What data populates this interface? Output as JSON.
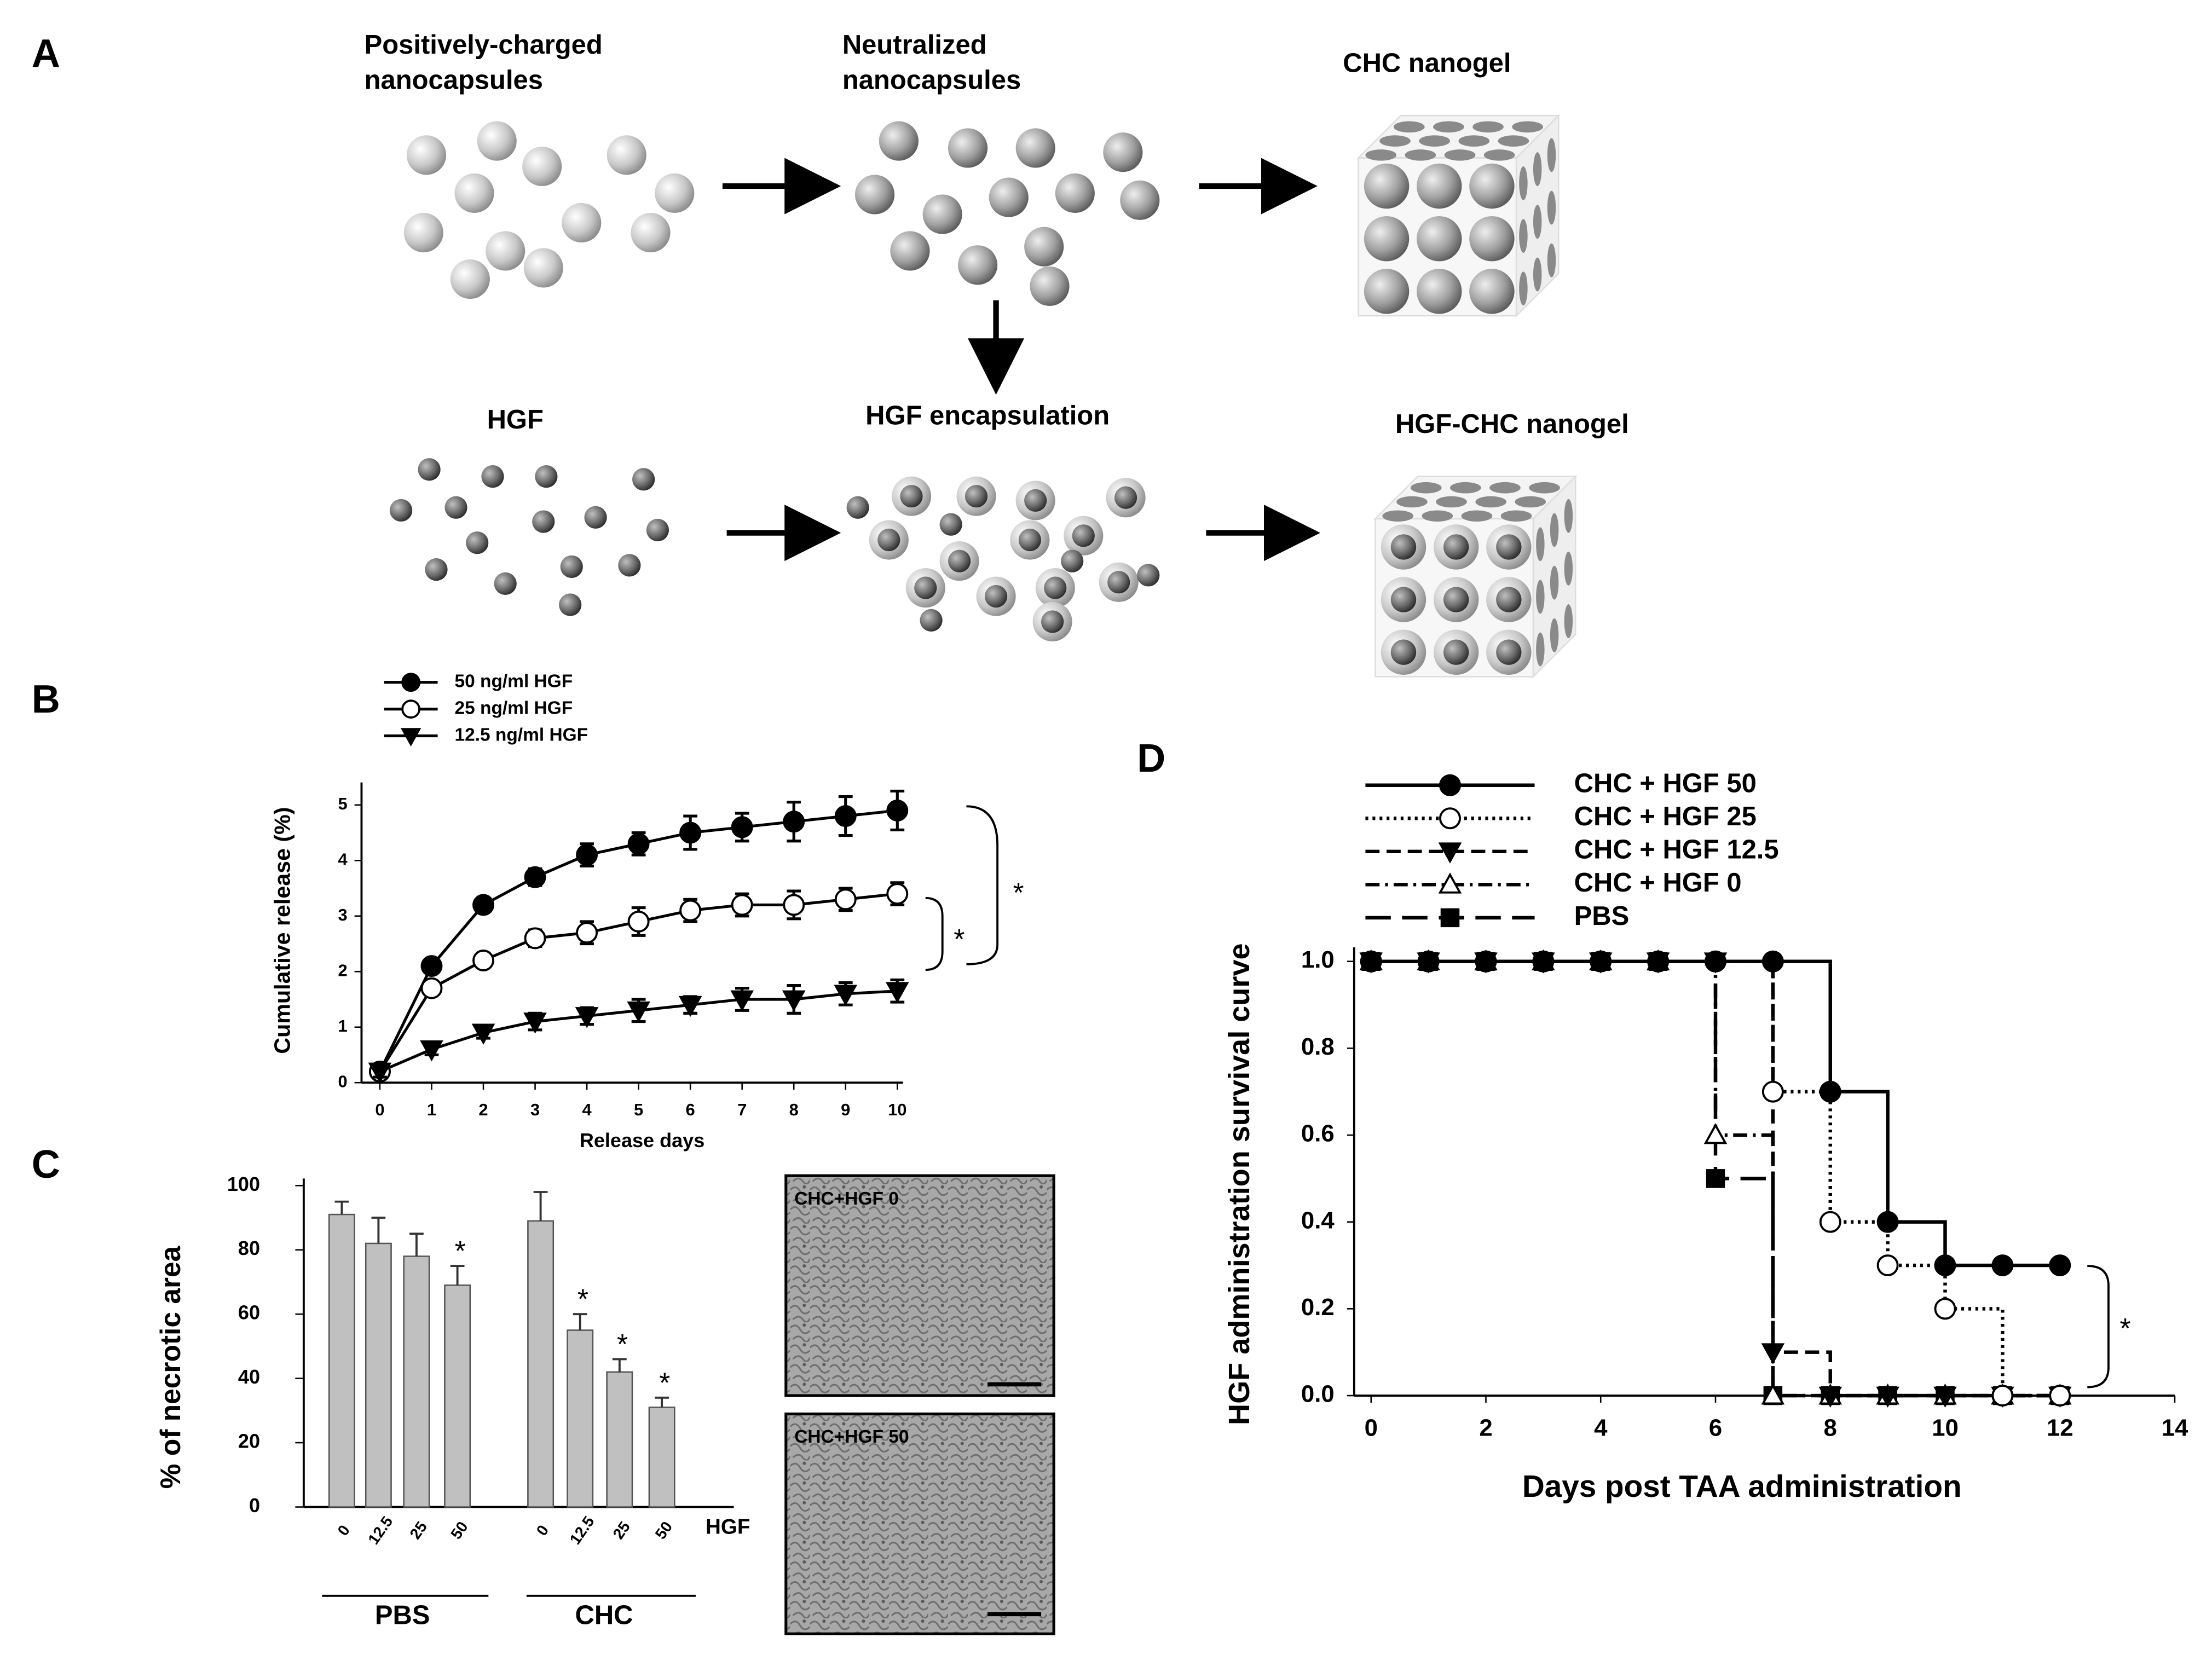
{
  "panel_labels": [
    "A",
    "B",
    "C",
    "D"
  ],
  "diagram": {
    "nodes": [
      {
        "label": [
          "Positively-charged",
          "nanocapsules"
        ]
      },
      {
        "label": [
          "Neutralized",
          "nanocapsules"
        ]
      },
      {
        "label": [
          "CHC nanogel"
        ]
      },
      {
        "label": [
          "HGF"
        ]
      },
      {
        "label": [
          "HGF encapsulation"
        ]
      },
      {
        "label": [
          "HGF-CHC nanogel"
        ]
      }
    ]
  },
  "chart_data": [
    {
      "type": "line",
      "x": [
        0,
        1,
        2,
        3,
        4,
        5,
        6,
        7,
        8,
        9,
        10
      ],
      "xlim": [
        0,
        10
      ],
      "xticks": [
        0,
        1,
        2,
        3,
        4,
        5,
        6,
        7,
        8,
        9,
        10
      ],
      "ylim": [
        0,
        5
      ],
      "yticks": [
        0,
        1,
        2,
        3,
        4,
        5
      ],
      "xlabel": "Release days",
      "ylabel": "Cumulative release (%)",
      "series": [
        {
          "name": "50 ng/ml HGF",
          "color": "#000000",
          "marker": "circle",
          "values": [
            0.2,
            2.1,
            3.2,
            3.7,
            4.1,
            4.3,
            4.5,
            4.6,
            4.7,
            4.8,
            4.9
          ],
          "errors": [
            0.1,
            0.1,
            0.1,
            0.15,
            0.2,
            0.2,
            0.3,
            0.25,
            0.35,
            0.35,
            0.35
          ]
        },
        {
          "name": "25 ng/ml HGF",
          "color": "#000000",
          "marker": "open-circle",
          "values": [
            0.2,
            1.7,
            2.2,
            2.6,
            2.7,
            2.9,
            3.1,
            3.2,
            3.2,
            3.3,
            3.4
          ],
          "errors": [
            0.1,
            0.1,
            0.1,
            0.15,
            0.2,
            0.25,
            0.2,
            0.2,
            0.25,
            0.2,
            0.2
          ]
        },
        {
          "name": "12.5 ng/ml HGF",
          "color": "#000000",
          "marker": "triangle-down",
          "values": [
            0.2,
            0.6,
            0.9,
            1.1,
            1.2,
            1.3,
            1.4,
            1.5,
            1.5,
            1.6,
            1.65
          ],
          "errors": [
            0.1,
            0.1,
            0.1,
            0.15,
            0.15,
            0.2,
            0.15,
            0.2,
            0.25,
            0.2,
            0.2
          ]
        }
      ],
      "annotations": [
        "*",
        "*"
      ]
    },
    {
      "type": "bar",
      "categories": [
        "0",
        "12.5",
        "25",
        "50",
        "0",
        "12.5",
        "25",
        "50"
      ],
      "category_title": "HGF",
      "groups": [
        "PBS",
        "CHC"
      ],
      "values": [
        91,
        82,
        78,
        69,
        89,
        55,
        42,
        31
      ],
      "errors": [
        4,
        8,
        7,
        6,
        9,
        5,
        4,
        3
      ],
      "significance": [
        null,
        null,
        null,
        "*",
        null,
        "*",
        "*",
        "*"
      ],
      "color": "#c0c0c0",
      "ylim": [
        0,
        100
      ],
      "yticks": [
        0,
        20,
        40,
        60,
        80,
        100
      ],
      "ylabel": "% of necrotic area"
    },
    {
      "type": "step",
      "x": [
        0,
        1,
        2,
        3,
        4,
        5,
        6,
        7,
        8,
        9,
        10,
        11,
        12
      ],
      "xlim": [
        0,
        14
      ],
      "xticks": [
        0,
        2,
        4,
        6,
        8,
        10,
        12,
        14
      ],
      "ylim": [
        0,
        1
      ],
      "yticks": [
        {
          "value": 0,
          "label": "0.0"
        },
        {
          "value": 0.2,
          "label": "0.2"
        },
        {
          "value": 0.4,
          "label": "0.4"
        },
        {
          "value": 0.6,
          "label": "0.6"
        },
        {
          "value": 0.8,
          "label": "0.8"
        },
        {
          "value": 1,
          "label": "1.0"
        }
      ],
      "xlabel": "Days post TAA administration",
      "ylabel": "HGF administration survival curve",
      "series": [
        {
          "name": "CHC + HGF 50",
          "color": "#000000",
          "marker": "circle",
          "dash": "solid",
          "values": [
            1,
            1,
            1,
            1,
            1,
            1,
            1,
            1,
            0.7,
            0.4,
            0.3,
            0.3,
            0.3
          ]
        },
        {
          "name": "CHC + HGF 25",
          "color": "#000000",
          "marker": "open-circle",
          "dash": "dotted",
          "values": [
            1,
            1,
            1,
            1,
            1,
            1,
            1,
            0.7,
            0.4,
            0.3,
            0.2,
            0,
            0
          ]
        },
        {
          "name": "CHC + HGF 12.5",
          "color": "#000000",
          "marker": "triangle-down",
          "dash": "dashed",
          "values": [
            1,
            1,
            1,
            1,
            1,
            1,
            1,
            0.1,
            0,
            0,
            0,
            0,
            0
          ]
        },
        {
          "name": "CHC + HGF 0",
          "color": "#000000",
          "marker": "open-triangle",
          "dash": "dashdot",
          "values": [
            1,
            1,
            1,
            1,
            1,
            1,
            0.6,
            0,
            0,
            0,
            0,
            0,
            0
          ]
        },
        {
          "name": "PBS",
          "color": "#000000",
          "marker": "square",
          "dash": "longdash",
          "values": [
            1,
            1,
            1,
            1,
            1,
            1,
            0.5,
            0,
            0,
            0,
            0,
            0,
            0
          ]
        }
      ],
      "annotations": [
        "*"
      ]
    }
  ],
  "micrographs": [
    {
      "label": "CHC+HGF 0"
    },
    {
      "label": "CHC+HGF 50"
    }
  ]
}
